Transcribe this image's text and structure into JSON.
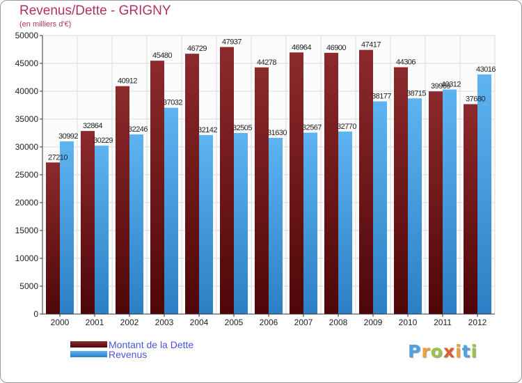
{
  "chart_data": {
    "type": "bar",
    "title": "Revenus/Dette - GRIGNY",
    "subtitle": "(en milliers d'€)",
    "xlabel": "",
    "ylabel": "",
    "ylim": [
      0,
      50000
    ],
    "yticks": [
      "0",
      "5000",
      "10000",
      "15000",
      "20000",
      "25000",
      "30000",
      "35000",
      "40000",
      "45000",
      "50000"
    ],
    "categories": [
      "2000",
      "2001",
      "2002",
      "2003",
      "2004",
      "2005",
      "2006",
      "2007",
      "2008",
      "2009",
      "2010",
      "2011",
      "2012"
    ],
    "series": [
      {
        "name": "Montant de la Dette",
        "color": "#7a1a1c",
        "values": [
          27210,
          32864,
          40912,
          45480,
          46729,
          47937,
          44278,
          46964,
          46900,
          47417,
          44306,
          39969,
          37680
        ],
        "labels": [
          "27210",
          "32864",
          "40912",
          "45480",
          "46729",
          "47937",
          "44278",
          "46964",
          "46900",
          "47417",
          "44306",
          "39969",
          "37680"
        ]
      },
      {
        "name": "Revenus",
        "color": "#4aa3e6",
        "values": [
          30992,
          30229,
          32246,
          37032,
          32142,
          32505,
          31630,
          32567,
          32770,
          38177,
          38715,
          40312,
          43016
        ],
        "labels": [
          "30992",
          "30229",
          "32246",
          "37032",
          "32142",
          "32505",
          "31630",
          "32567",
          "32770",
          "38177",
          "38715",
          "40312",
          "43016"
        ]
      }
    ],
    "grid": true,
    "legend_position": "bottom-left"
  },
  "logo": {
    "letters": [
      "P",
      "r",
      "o",
      "x",
      "i",
      "t",
      "i"
    ],
    "colors": [
      "#4aa3e6",
      "#e8a33a",
      "#9bc24a",
      "#e05a2a",
      "#e8a33a",
      "#4aa3e6",
      "#9bc24a"
    ]
  }
}
